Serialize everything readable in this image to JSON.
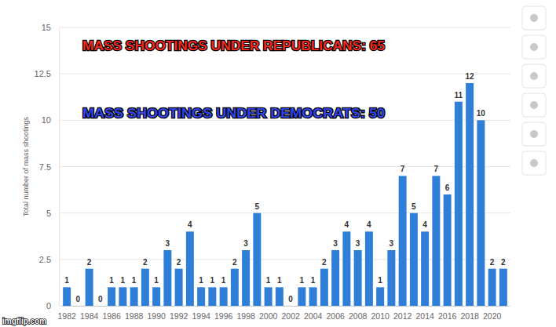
{
  "chart_data": {
    "type": "bar",
    "y_label": "Total number of mass shootings",
    "categories": [
      "1982",
      null,
      "1984",
      null,
      "1986",
      null,
      "1988",
      null,
      "1990",
      null,
      "1992",
      null,
      "1994",
      null,
      "1996",
      null,
      "1998",
      null,
      "2000",
      null,
      "2002",
      null,
      "2004",
      null,
      "2006",
      null,
      "2008",
      null,
      "2010",
      null,
      "2012",
      null,
      "2014",
      null,
      "2016",
      null,
      "2018",
      null,
      "2020",
      null
    ],
    "values": [
      1,
      0,
      2,
      0,
      1,
      1,
      1,
      2,
      1,
      3,
      2,
      4,
      1,
      1,
      1,
      2,
      3,
      5,
      1,
      1,
      0,
      1,
      1,
      2,
      3,
      4,
      3,
      4,
      1,
      3,
      7,
      5,
      4,
      7,
      6,
      11,
      12,
      10,
      2,
      2
    ],
    "color": "#2f7ed8",
    "ylim": [
      0,
      15
    ],
    "yticks": [
      0,
      2.5,
      5,
      7.5,
      10,
      12.5,
      15
    ],
    "grid": true,
    "data_labels": true,
    "annotations": [
      {
        "text": "MASS SHOOTINGS UNDER REPUBLICANS: 65",
        "color": "#f5281c"
      },
      {
        "text": "MASS SHOOTINGS UNDER DEMOCRATS: 50",
        "color": "#2f45ea"
      },
      {
        "text": "imgflip.com",
        "color": "#ffffff"
      }
    ]
  }
}
